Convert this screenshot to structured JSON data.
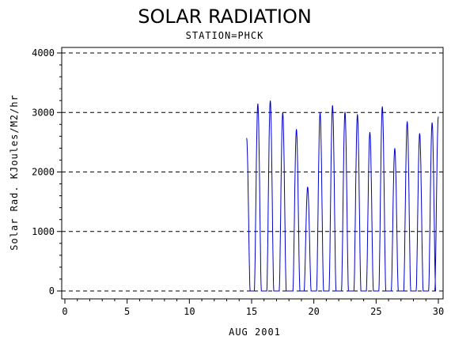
{
  "chart_data": {
    "type": "line",
    "title": "SOLAR RADIATION",
    "subtitle": "STATION=PHCK",
    "xlabel": "AUG 2001",
    "ylabel": "Solar Rad. KJoules/M2/hr",
    "xlim": [
      0,
      30
    ],
    "ylim": [
      0,
      4000
    ],
    "x_ticks": [
      0,
      5,
      10,
      15,
      20,
      25,
      30
    ],
    "y_ticks": [
      0,
      1000,
      2000,
      3000,
      4000
    ],
    "gridlines": "horizontal dashed",
    "series": [
      {
        "color": "#0000cc",
        "daily_peaks": [
          {
            "day": 14.6,
            "peak": 2570
          },
          {
            "day": 15.5,
            "peak": 3150
          },
          {
            "day": 16.5,
            "peak": 3200
          },
          {
            "day": 17.5,
            "peak": 3000
          },
          {
            "day": 18.6,
            "peak": 2720
          },
          {
            "day": 19.5,
            "peak": 1750
          },
          {
            "day": 20.5,
            "peak": 3000
          },
          {
            "day": 21.5,
            "peak": 3120
          },
          {
            "day": 22.5,
            "peak": 3010
          },
          {
            "day": 23.5,
            "peak": 2970
          },
          {
            "day": 24.5,
            "peak": 2670
          },
          {
            "day": 25.5,
            "peak": 3100
          },
          {
            "day": 26.5,
            "peak": 2400
          },
          {
            "day": 27.5,
            "peak": 2850
          },
          {
            "day": 28.5,
            "peak": 2650
          },
          {
            "day": 29.5,
            "peak": 2830
          },
          {
            "day": 30.0,
            "peak": 2930
          }
        ]
      }
    ]
  }
}
